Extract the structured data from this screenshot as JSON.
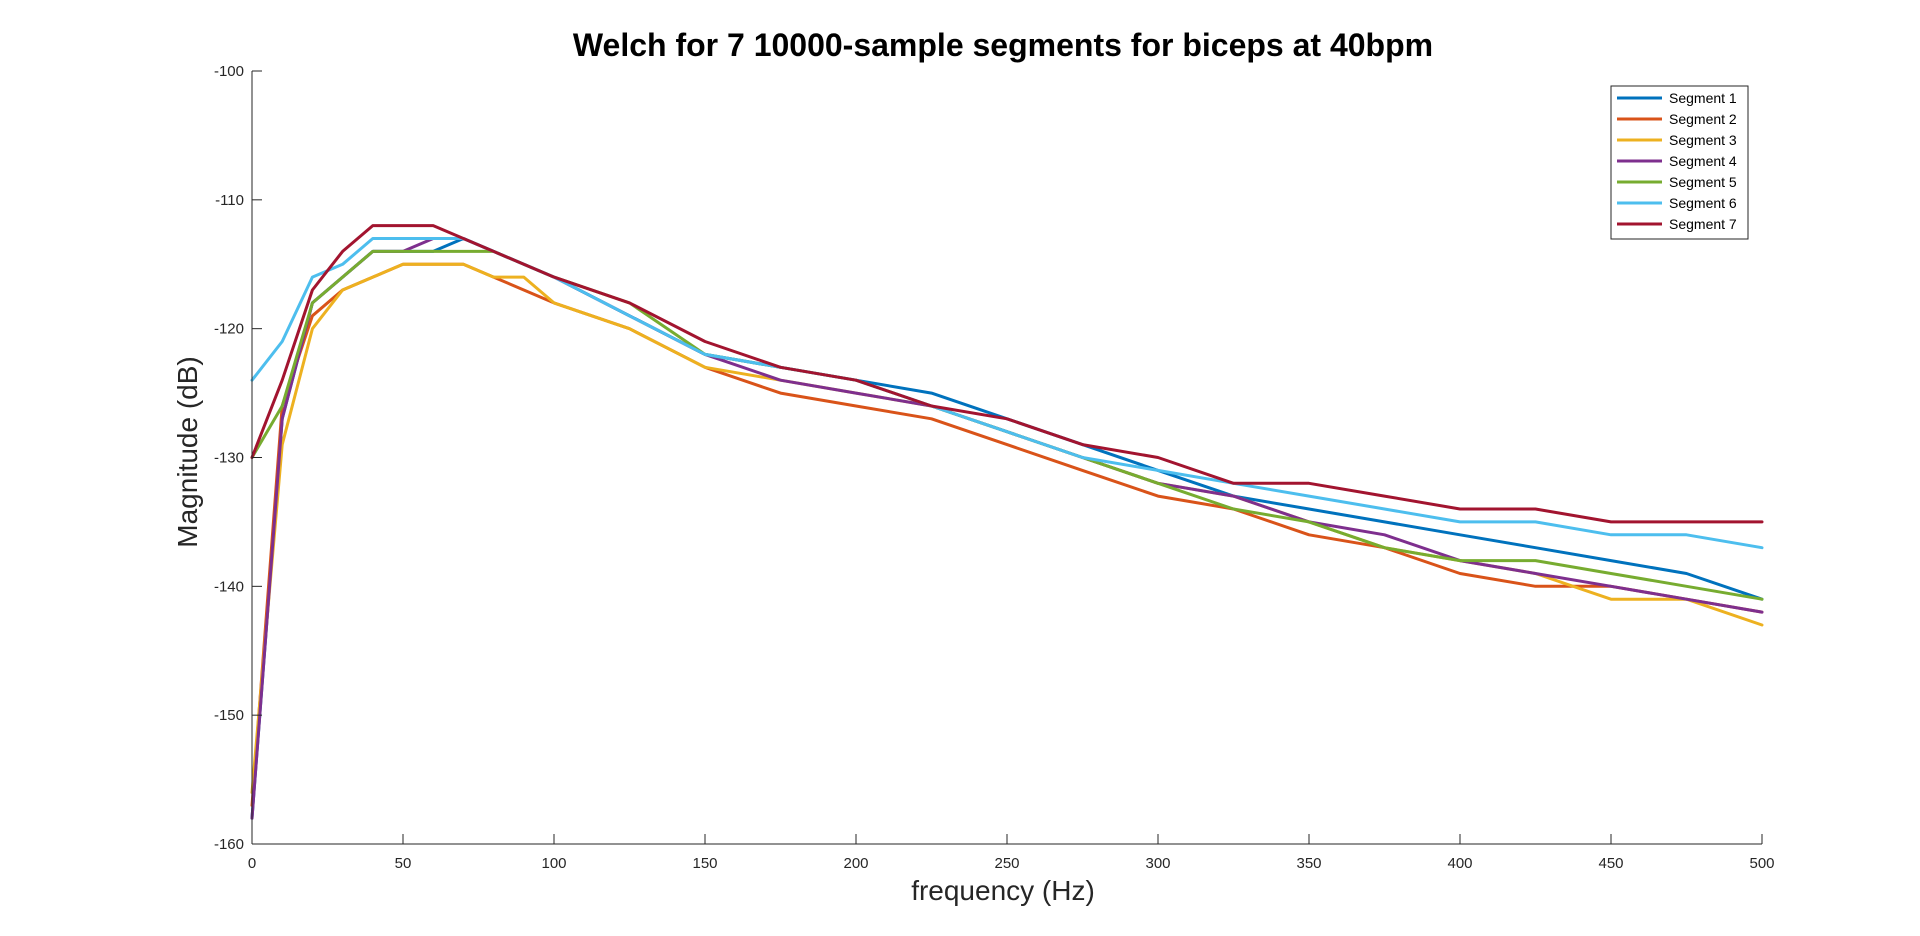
{
  "chart_data": {
    "type": "line",
    "title": "Welch for 7 10000-sample segments for biceps at 40bpm",
    "xlabel": "frequency (Hz)",
    "ylabel": "Magnitude (dB)",
    "xlim": [
      0,
      500
    ],
    "ylim": [
      -160,
      -100
    ],
    "xticks": [
      "0",
      "50",
      "100",
      "150",
      "200",
      "250",
      "300",
      "350",
      "400",
      "450",
      "500"
    ],
    "yticks": [
      "-160",
      "-150",
      "-140",
      "-130",
      "-120",
      "-110",
      "-100"
    ],
    "grid": false,
    "legend_position": "top-right",
    "x": [
      0,
      10,
      20,
      30,
      40,
      50,
      60,
      70,
      80,
      90,
      100,
      125,
      150,
      175,
      200,
      225,
      250,
      275,
      300,
      325,
      350,
      375,
      400,
      425,
      450,
      475,
      500
    ],
    "series": [
      {
        "name": "Segment 1",
        "color": "#0072BD",
        "values": [
          -158,
          -127,
          -118,
          -116,
          -114,
          -114,
          -114,
          -113,
          -114,
          -115,
          -116,
          -119,
          -122,
          -123,
          -124,
          -125,
          -127,
          -129,
          -131,
          -133,
          -134,
          -135,
          -136,
          -137,
          -138,
          -139,
          -141
        ]
      },
      {
        "name": "Segment 2",
        "color": "#D95319",
        "values": [
          -157,
          -126,
          -119,
          -117,
          -116,
          -115,
          -115,
          -115,
          -116,
          -117,
          -118,
          -120,
          -123,
          -125,
          -126,
          -127,
          -129,
          -131,
          -133,
          -134,
          -136,
          -137,
          -139,
          -140,
          -140,
          -141,
          -142
        ]
      },
      {
        "name": "Segment 3",
        "color": "#EDB120",
        "values": [
          -156,
          -129,
          -120,
          -117,
          -116,
          -115,
          -115,
          -115,
          -116,
          -116,
          -118,
          -120,
          -123,
          -124,
          -125,
          -126,
          -128,
          -130,
          -132,
          -133,
          -135,
          -137,
          -138,
          -139,
          -141,
          -141,
          -143
        ]
      },
      {
        "name": "Segment 4",
        "color": "#7E2F8E",
        "values": [
          -158,
          -127,
          -118,
          -116,
          -114,
          -114,
          -113,
          -113,
          -114,
          -115,
          -116,
          -119,
          -122,
          -124,
          -125,
          -126,
          -128,
          -130,
          -132,
          -133,
          -135,
          -136,
          -138,
          -139,
          -140,
          -141,
          -142
        ]
      },
      {
        "name": "Segment 5",
        "color": "#77AC30",
        "values": [
          -130,
          -126,
          -118,
          -116,
          -114,
          -114,
          -114,
          -114,
          -114,
          -115,
          -116,
          -118,
          -122,
          -123,
          -124,
          -126,
          -128,
          -130,
          -132,
          -134,
          -135,
          -137,
          -138,
          -138,
          -139,
          -140,
          -141
        ]
      },
      {
        "name": "Segment 6",
        "color": "#4DBEEE",
        "values": [
          -124,
          -121,
          -116,
          -115,
          -113,
          -113,
          -113,
          -113,
          -114,
          -115,
          -116,
          -119,
          -122,
          -123,
          -124,
          -126,
          -128,
          -130,
          -131,
          -132,
          -133,
          -134,
          -135,
          -135,
          -136,
          -136,
          -137
        ]
      },
      {
        "name": "Segment 7",
        "color": "#A2142F",
        "values": [
          -130,
          -124,
          -117,
          -114,
          -112,
          -112,
          -112,
          -113,
          -114,
          -115,
          -116,
          -118,
          -121,
          -123,
          -124,
          -126,
          -127,
          -129,
          -130,
          -132,
          -132,
          -133,
          -134,
          -134,
          -135,
          -135,
          -135
        ]
      }
    ]
  }
}
